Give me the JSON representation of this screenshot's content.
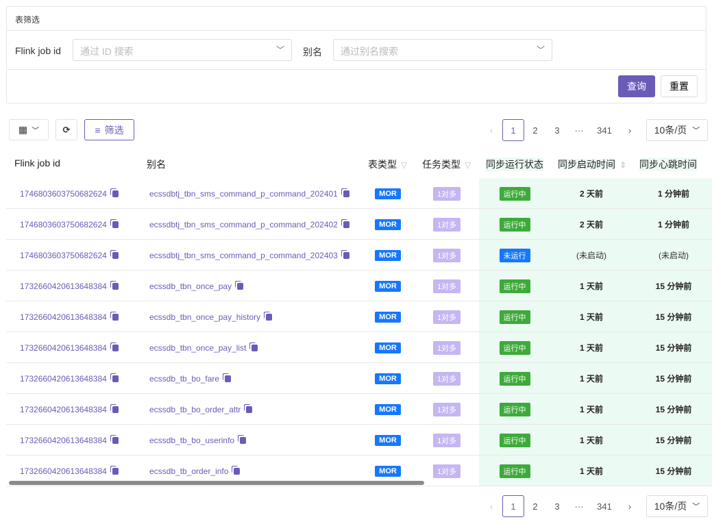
{
  "filter": {
    "title": "表筛选",
    "job_label": "Flink job id",
    "job_placeholder": "通过 ID 搜索",
    "alias_label": "别名",
    "alias_placeholder": "通过别名搜索",
    "query": "查询",
    "reset": "重置"
  },
  "toolbar": {
    "filter_label": "筛选"
  },
  "pagination": {
    "pages": [
      "1",
      "2",
      "3",
      "···",
      "341"
    ],
    "current": "1",
    "page_size": "10条/页"
  },
  "columns": [
    "Flink job id",
    "别名",
    "表类型",
    "任务类型",
    "同步运行状态",
    "同步启动时间",
    "同步心跳时间"
  ],
  "colors": {
    "accent": "#6b5bb8",
    "mor": "#1677ff",
    "running": "#3daa3a",
    "stopped": "#1677ff",
    "task_type": "#c5b6f2",
    "status_bg": "#ebfaf2"
  },
  "rows": [
    {
      "id": "1746803603750682624",
      "alias": "ecssdbtj_tbn_sms_command_p_command_202401",
      "type": "MOR",
      "task": "1对多",
      "status": "运行中",
      "start": "2 天前",
      "beat": "1 分钟前"
    },
    {
      "id": "1746803603750682624",
      "alias": "ecssdbtj_tbn_sms_command_p_command_202402",
      "type": "MOR",
      "task": "1对多",
      "status": "运行中",
      "start": "2 天前",
      "beat": "1 分钟前"
    },
    {
      "id": "1746803603750682624",
      "alias": "ecssdbtj_tbn_sms_command_p_command_202403",
      "type": "MOR",
      "task": "1对多",
      "status": "未运行",
      "start": "(未启动)",
      "beat": "(未启动)"
    },
    {
      "id": "1732660420613648384",
      "alias": "ecssdb_tbn_once_pay",
      "type": "MOR",
      "task": "1对多",
      "status": "运行中",
      "start": "1 天前",
      "beat": "15 分钟前"
    },
    {
      "id": "1732660420613648384",
      "alias": "ecssdb_tbn_once_pay_history",
      "type": "MOR",
      "task": "1对多",
      "status": "运行中",
      "start": "1 天前",
      "beat": "15 分钟前"
    },
    {
      "id": "1732660420613648384",
      "alias": "ecssdb_tbn_once_pay_list",
      "type": "MOR",
      "task": "1对多",
      "status": "运行中",
      "start": "1 天前",
      "beat": "15 分钟前"
    },
    {
      "id": "1732660420613648384",
      "alias": "ecssdb_tb_bo_fare",
      "type": "MOR",
      "task": "1对多",
      "status": "运行中",
      "start": "1 天前",
      "beat": "15 分钟前"
    },
    {
      "id": "1732660420613648384",
      "alias": "ecssdb_tb_bo_order_attr",
      "type": "MOR",
      "task": "1对多",
      "status": "运行中",
      "start": "1 天前",
      "beat": "15 分钟前"
    },
    {
      "id": "1732660420613648384",
      "alias": "ecssdb_tb_bo_userinfo",
      "type": "MOR",
      "task": "1对多",
      "status": "运行中",
      "start": "1 天前",
      "beat": "15 分钟前"
    },
    {
      "id": "1732660420613648384",
      "alias": "ecssdb_tb_order_info",
      "type": "MOR",
      "task": "1对多",
      "status": "运行中",
      "start": "1 天前",
      "beat": "15 分钟前"
    }
  ]
}
